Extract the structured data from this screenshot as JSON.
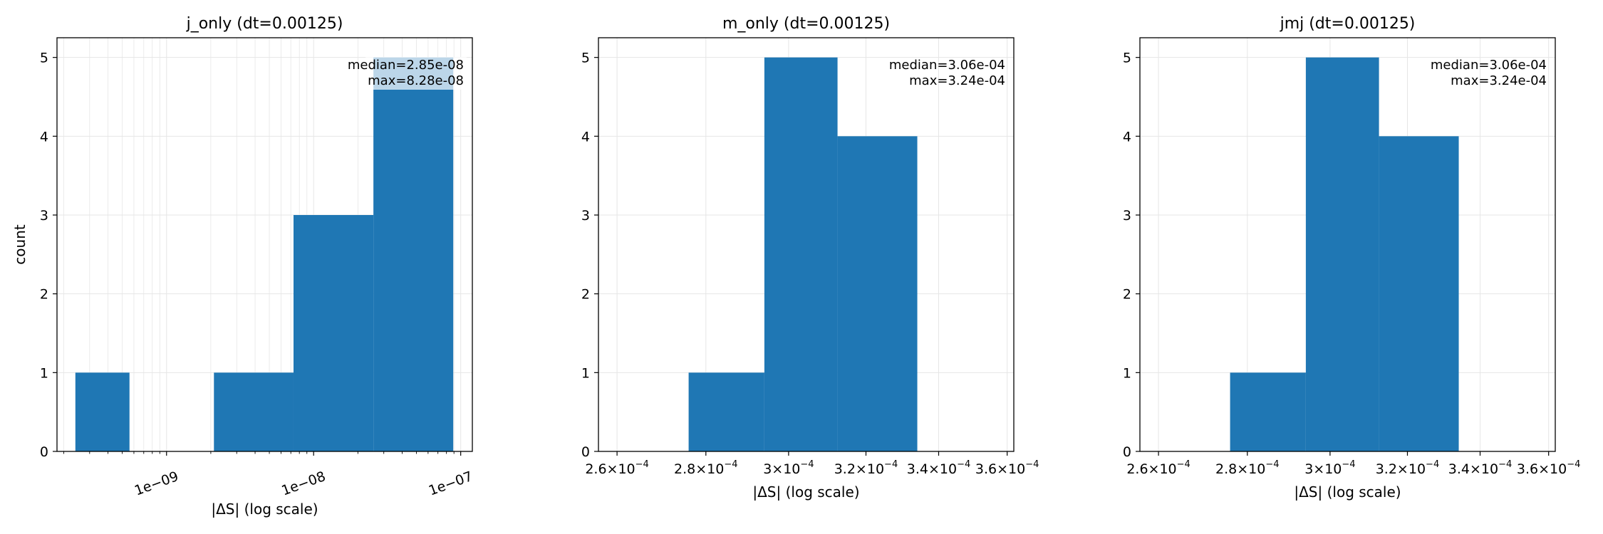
{
  "colors": {
    "bar": "#1f77b4",
    "grid": "#e6e6e6",
    "axis": "#000000"
  },
  "chart_data": [
    {
      "type": "bar",
      "title": "j_only (dt=0.00125)",
      "xlabel": "|ΔS| (log scale)",
      "ylabel": "count",
      "xscale": "log",
      "xlim": [
        1.8e-10,
        1.2e-07
      ],
      "ylim": [
        0,
        5.25
      ],
      "yticks": [
        0,
        1,
        2,
        3,
        4,
        5
      ],
      "xticks": [
        {
          "value": 1e-09,
          "label": "1e−09"
        },
        {
          "value": 1e-08,
          "label": "1e−08"
        },
        {
          "value": 1e-07,
          "label": "1e−07"
        }
      ],
      "xtick_rotation": -20,
      "grid": true,
      "minor_grid": true,
      "bins": [
        {
          "x0": 2.4e-10,
          "x1": 5.6e-10,
          "count": 1
        },
        {
          "x0": 5.6e-10,
          "x1": 2.1e-09,
          "count": 0
        },
        {
          "x0": 2.1e-09,
          "x1": 7.3e-09,
          "count": 1
        },
        {
          "x0": 7.3e-09,
          "x1": 2.55e-08,
          "count": 3
        },
        {
          "x0": 2.55e-08,
          "x1": 8.9e-08,
          "count": 5
        }
      ],
      "annotation": [
        "median=2.85e-08",
        "max=8.28e-08"
      ],
      "annotation_box": true,
      "annotation_placement": "top-right"
    },
    {
      "type": "bar",
      "title": "m_only (dt=0.00125)",
      "xlabel": "|ΔS| (log scale)",
      "ylabel": "",
      "xscale": "log",
      "xlim": [
        0.000256,
        0.000362
      ],
      "ylim": [
        0,
        5.25
      ],
      "yticks": [
        0,
        1,
        2,
        3,
        4,
        5
      ],
      "xticks": [
        {
          "value": 0.00026,
          "mant": "2.6",
          "exp": "−4"
        },
        {
          "value": 0.00028,
          "mant": "2.8",
          "exp": "−4"
        },
        {
          "value": 0.0003,
          "mant": "3",
          "exp": "−4"
        },
        {
          "value": 0.00032,
          "mant": "3.2",
          "exp": "−4"
        },
        {
          "value": 0.00034,
          "mant": "3.4",
          "exp": "−4"
        },
        {
          "value": 0.00036,
          "mant": "3.6",
          "exp": "−4"
        }
      ],
      "xtick_rotation": 0,
      "grid": true,
      "minor_grid": false,
      "bins": [
        {
          "x0": 0.000276,
          "x1": 0.000294,
          "count": 1
        },
        {
          "x0": 0.000294,
          "x1": 0.0003125,
          "count": 5
        },
        {
          "x0": 0.0003125,
          "x1": 0.000334,
          "count": 4
        }
      ],
      "annotation": [
        "median=3.06e-04",
        "max=3.24e-04"
      ],
      "annotation_box": false,
      "annotation_placement": "top-right"
    },
    {
      "type": "bar",
      "title": "jmj (dt=0.00125)",
      "xlabel": "|ΔS| (log scale)",
      "ylabel": "",
      "xscale": "log",
      "xlim": [
        0.000256,
        0.000362
      ],
      "ylim": [
        0,
        5.25
      ],
      "yticks": [
        0,
        1,
        2,
        3,
        4,
        5
      ],
      "xticks": [
        {
          "value": 0.00026,
          "mant": "2.6",
          "exp": "−4"
        },
        {
          "value": 0.00028,
          "mant": "2.8",
          "exp": "−4"
        },
        {
          "value": 0.0003,
          "mant": "3",
          "exp": "−4"
        },
        {
          "value": 0.00032,
          "mant": "3.2",
          "exp": "−4"
        },
        {
          "value": 0.00034,
          "mant": "3.4",
          "exp": "−4"
        },
        {
          "value": 0.00036,
          "mant": "3.6",
          "exp": "−4"
        }
      ],
      "xtick_rotation": 0,
      "grid": true,
      "minor_grid": false,
      "bins": [
        {
          "x0": 0.000276,
          "x1": 0.000294,
          "count": 1
        },
        {
          "x0": 0.000294,
          "x1": 0.0003125,
          "count": 5
        },
        {
          "x0": 0.0003125,
          "x1": 0.000334,
          "count": 4
        }
      ],
      "annotation": [
        "median=3.06e-04",
        "max=3.24e-04"
      ],
      "annotation_box": false,
      "annotation_placement": "top-right"
    }
  ]
}
